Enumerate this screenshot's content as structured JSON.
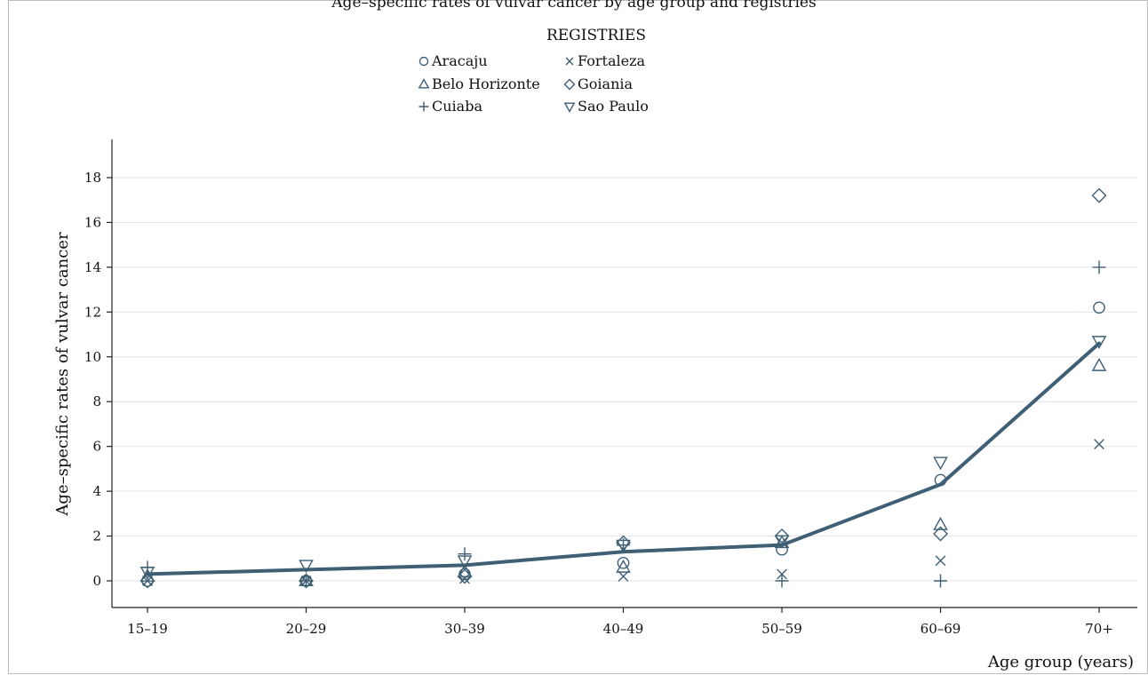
{
  "title": "Age–specific rates of vulvar cancer by age group and registries",
  "chart_data": {
    "type": "scatter",
    "title": "Age–specific rates of vulvar cancer by age group and registries",
    "xlabel": "Age group (years)",
    "ylabel": "Age–specific rates of vulvar cancer",
    "categories": [
      "15–19",
      "20–29",
      "30–39",
      "40–49",
      "50–59",
      "60–69",
      "70+"
    ],
    "ylim": [
      -1,
      19.8
    ],
    "yticks": [
      0,
      2,
      4,
      6,
      8,
      10,
      12,
      14,
      16,
      18
    ],
    "ytick_labels": [
      "0",
      "2",
      "4",
      "6",
      "8",
      "10",
      "12",
      "14",
      "16",
      "18"
    ],
    "grid": true,
    "legend": {
      "title": "REGISTRIES",
      "position": "top-center",
      "columns": 2
    },
    "series": [
      {
        "name": "Aracaju",
        "marker": "circle",
        "values": [
          0.0,
          0.0,
          0.3,
          0.8,
          1.4,
          4.5,
          12.2
        ]
      },
      {
        "name": "Belo Horizonte",
        "marker": "triangle-up",
        "values": [
          0.2,
          0.0,
          0.4,
          0.6,
          1.7,
          2.5,
          9.6
        ]
      },
      {
        "name": "Cuiaba",
        "marker": "plus",
        "values": [
          0.6,
          0.0,
          1.2,
          1.6,
          0.0,
          0.0,
          14.0
        ]
      },
      {
        "name": "Fortaleza",
        "marker": "x",
        "values": [
          0.0,
          0.0,
          0.1,
          0.2,
          0.3,
          0.9,
          6.1
        ]
      },
      {
        "name": "Goiania",
        "marker": "diamond",
        "values": [
          0.0,
          0.0,
          0.2,
          1.7,
          2.0,
          2.1,
          17.2
        ]
      },
      {
        "name": "Sao Paulo",
        "marker": "triangle-down",
        "values": [
          0.4,
          0.7,
          0.9,
          1.6,
          1.8,
          5.3,
          10.7
        ]
      }
    ],
    "trend_line": {
      "values": [
        0.3,
        0.5,
        0.7,
        1.3,
        1.6,
        4.3,
        10.6
      ]
    },
    "colors": {
      "marker": "#3f5f75",
      "line": "#3f5f75",
      "grid": "#e4e4e4",
      "axis": "#222222"
    }
  }
}
